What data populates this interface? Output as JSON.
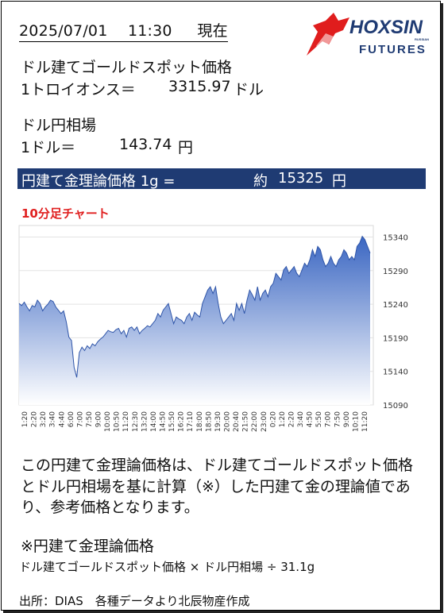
{
  "header": {
    "datetime": "2025/07/01　 11:30 　 現在"
  },
  "logo": {
    "name": "HOXSIN",
    "sub": "FUTURES",
    "tag": "RUSSIAN",
    "color": "#e01d1d",
    "text_color": "#1f3b73"
  },
  "gold": {
    "title": "ドル建てゴールドスポット価格",
    "unit_label": "1トロイオンス＝",
    "value": "3315.97",
    "currency": "ドル"
  },
  "fx": {
    "title": "ドル円相場",
    "unit_label": "1ドル＝",
    "value": "143.74",
    "currency": "円"
  },
  "theory": {
    "label": "円建て金理論価格 1g =",
    "prefix": "約",
    "value": "15325",
    "currency": "円",
    "band_color": "#1f3b73"
  },
  "chart_caption": "10分足チャート",
  "chart_data": {
    "type": "area",
    "fill_top": "#3a66c2",
    "fill_bottom": "#ffffff",
    "grid": true,
    "ylim": [
      15090,
      15350
    ],
    "yticks": [
      "15340",
      "15290",
      "15240",
      "15190",
      "15140",
      "15090"
    ],
    "ytick_values": [
      15340,
      15290,
      15240,
      15190,
      15140,
      15090
    ],
    "xticks": [
      "1:20",
      "2:20",
      "3:20",
      "3:40",
      "4:40",
      "6:00",
      "7:00",
      "7:50",
      "9:00",
      "10:00",
      "10:50",
      "11:20",
      "12:30",
      "13:20",
      "14:00",
      "14:50",
      "15:50",
      "16:20",
      "17:10",
      "18:00",
      "18:50",
      "19:30",
      "20:00",
      "20:40",
      "21:50",
      "22:00",
      "23:00",
      "0:20",
      "1:20",
      "2:20",
      "3:40",
      "4:50",
      "5:50",
      "7:00",
      "7:50",
      "9:00",
      "10:10",
      "11:20"
    ],
    "values": [
      15241,
      15238,
      15243,
      15236,
      15230,
      15238,
      15236,
      15246,
      15241,
      15230,
      15236,
      15240,
      15246,
      15244,
      15236,
      15231,
      15226,
      15230,
      15214,
      15191,
      15186,
      15146,
      15131,
      15168,
      15176,
      15171,
      15178,
      15174,
      15181,
      15178,
      15184,
      15188,
      15191,
      15196,
      15201,
      15199,
      15198,
      15202,
      15204,
      15196,
      15201,
      15191,
      15204,
      15206,
      15201,
      15206,
      15196,
      15201,
      15204,
      15208,
      15206,
      15211,
      15216,
      15226,
      15221,
      15231,
      15236,
      15241,
      15226,
      15211,
      15221,
      15218,
      15216,
      15211,
      15221,
      15226,
      15216,
      15228,
      15224,
      15221,
      15241,
      15251,
      15261,
      15266,
      15256,
      15266,
      15241,
      15221,
      15211,
      15216,
      15221,
      15226,
      15216,
      15241,
      15231,
      15241,
      15226,
      15246,
      15261,
      15254,
      15246,
      15266,
      15246,
      15256,
      15261,
      15251,
      15266,
      15271,
      15286,
      15281,
      15276,
      15291,
      15296,
      15286,
      15291,
      15296,
      15286,
      15281,
      15291,
      15301,
      15296,
      15306,
      15321,
      15311,
      15326,
      15321,
      15306,
      15296,
      15301,
      15311,
      15301,
      15296,
      15306,
      15311,
      15321,
      15316,
      15306,
      15311,
      15306,
      15326,
      15331,
      15341,
      15336,
      15326,
      15316
    ]
  },
  "note": "この円建て金理論価格は、ドル建てゴールドスポット価格とドル円相場を基に計算（※）した円建て金の理論値であり、参考価格となります。",
  "formula": {
    "title": "※円建て金理論価格",
    "text": "ドル建てゴールドスポット価格 × ドル円相場 ÷ 31.1g"
  },
  "source": "出所：DIAS　各種データより北辰物産作成"
}
